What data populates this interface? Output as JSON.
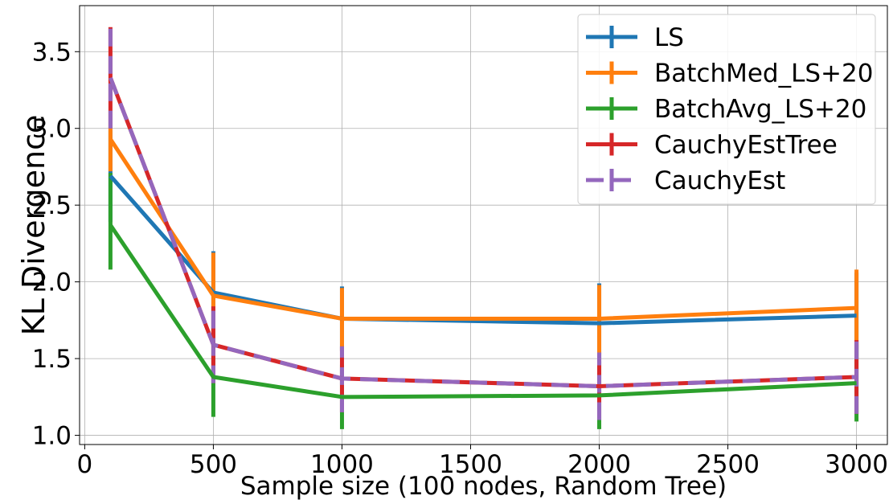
{
  "chart_data": {
    "type": "line",
    "title": "",
    "xlabel": "Sample size (100 nodes, Random Tree)",
    "ylabel": "KL Divergence",
    "xlim": [
      -20,
      3120
    ],
    "ylim": [
      0.94,
      3.8
    ],
    "xticks": [
      0,
      500,
      1000,
      1500,
      2000,
      2500,
      3000
    ],
    "xtick_labels": [
      "0",
      "500",
      "1000",
      "1500",
      "2000",
      "2500",
      "3000"
    ],
    "yticks": [
      1.0,
      1.5,
      2.0,
      2.5,
      3.0,
      3.5
    ],
    "ytick_labels": [
      "1.0",
      "1.5",
      "2.0",
      "2.5",
      "3.0",
      "3.5"
    ],
    "grid": true,
    "legend_position": "top-right",
    "x": [
      100,
      500,
      1000,
      2000,
      3000
    ],
    "series": [
      {
        "name": "LS",
        "color": "#1f77b4",
        "style": "solid",
        "values": [
          2.69,
          1.93,
          1.76,
          1.73,
          1.78
        ],
        "err_low": [
          2.39,
          1.66,
          1.55,
          1.47,
          1.5
        ],
        "err_high": [
          2.99,
          2.2,
          1.97,
          1.99,
          2.06
        ]
      },
      {
        "name": "BatchMed_LS+20",
        "color": "#ff7f0e",
        "style": "solid",
        "values": [
          2.93,
          1.91,
          1.76,
          1.76,
          1.83
        ],
        "err_low": [
          2.72,
          1.63,
          1.55,
          1.53,
          1.59
        ],
        "err_high": [
          3.0,
          2.19,
          1.96,
          1.98,
          2.08
        ]
      },
      {
        "name": "BatchAvg_LS+20",
        "color": "#2ca02c",
        "style": "solid",
        "values": [
          2.37,
          1.38,
          1.25,
          1.26,
          1.34
        ],
        "err_low": [
          2.08,
          1.12,
          1.04,
          1.04,
          1.09
        ],
        "err_high": [
          2.71,
          1.64,
          1.46,
          1.48,
          1.59
        ]
      },
      {
        "name": "CauchyEstTree",
        "color": "#d62728",
        "style": "solid",
        "values": [
          3.33,
          1.59,
          1.37,
          1.32,
          1.38
        ],
        "err_low": [
          3.0,
          1.34,
          1.15,
          1.1,
          1.14
        ],
        "err_high": [
          3.66,
          1.84,
          1.58,
          1.54,
          1.62
        ]
      },
      {
        "name": "CauchyEst",
        "color": "#9467bd",
        "style": "dashed",
        "values": [
          3.33,
          1.59,
          1.37,
          1.32,
          1.38
        ],
        "err_low": [
          3.0,
          1.34,
          1.15,
          1.1,
          1.14
        ],
        "err_high": [
          3.66,
          1.84,
          1.58,
          1.54,
          1.62
        ]
      }
    ]
  }
}
